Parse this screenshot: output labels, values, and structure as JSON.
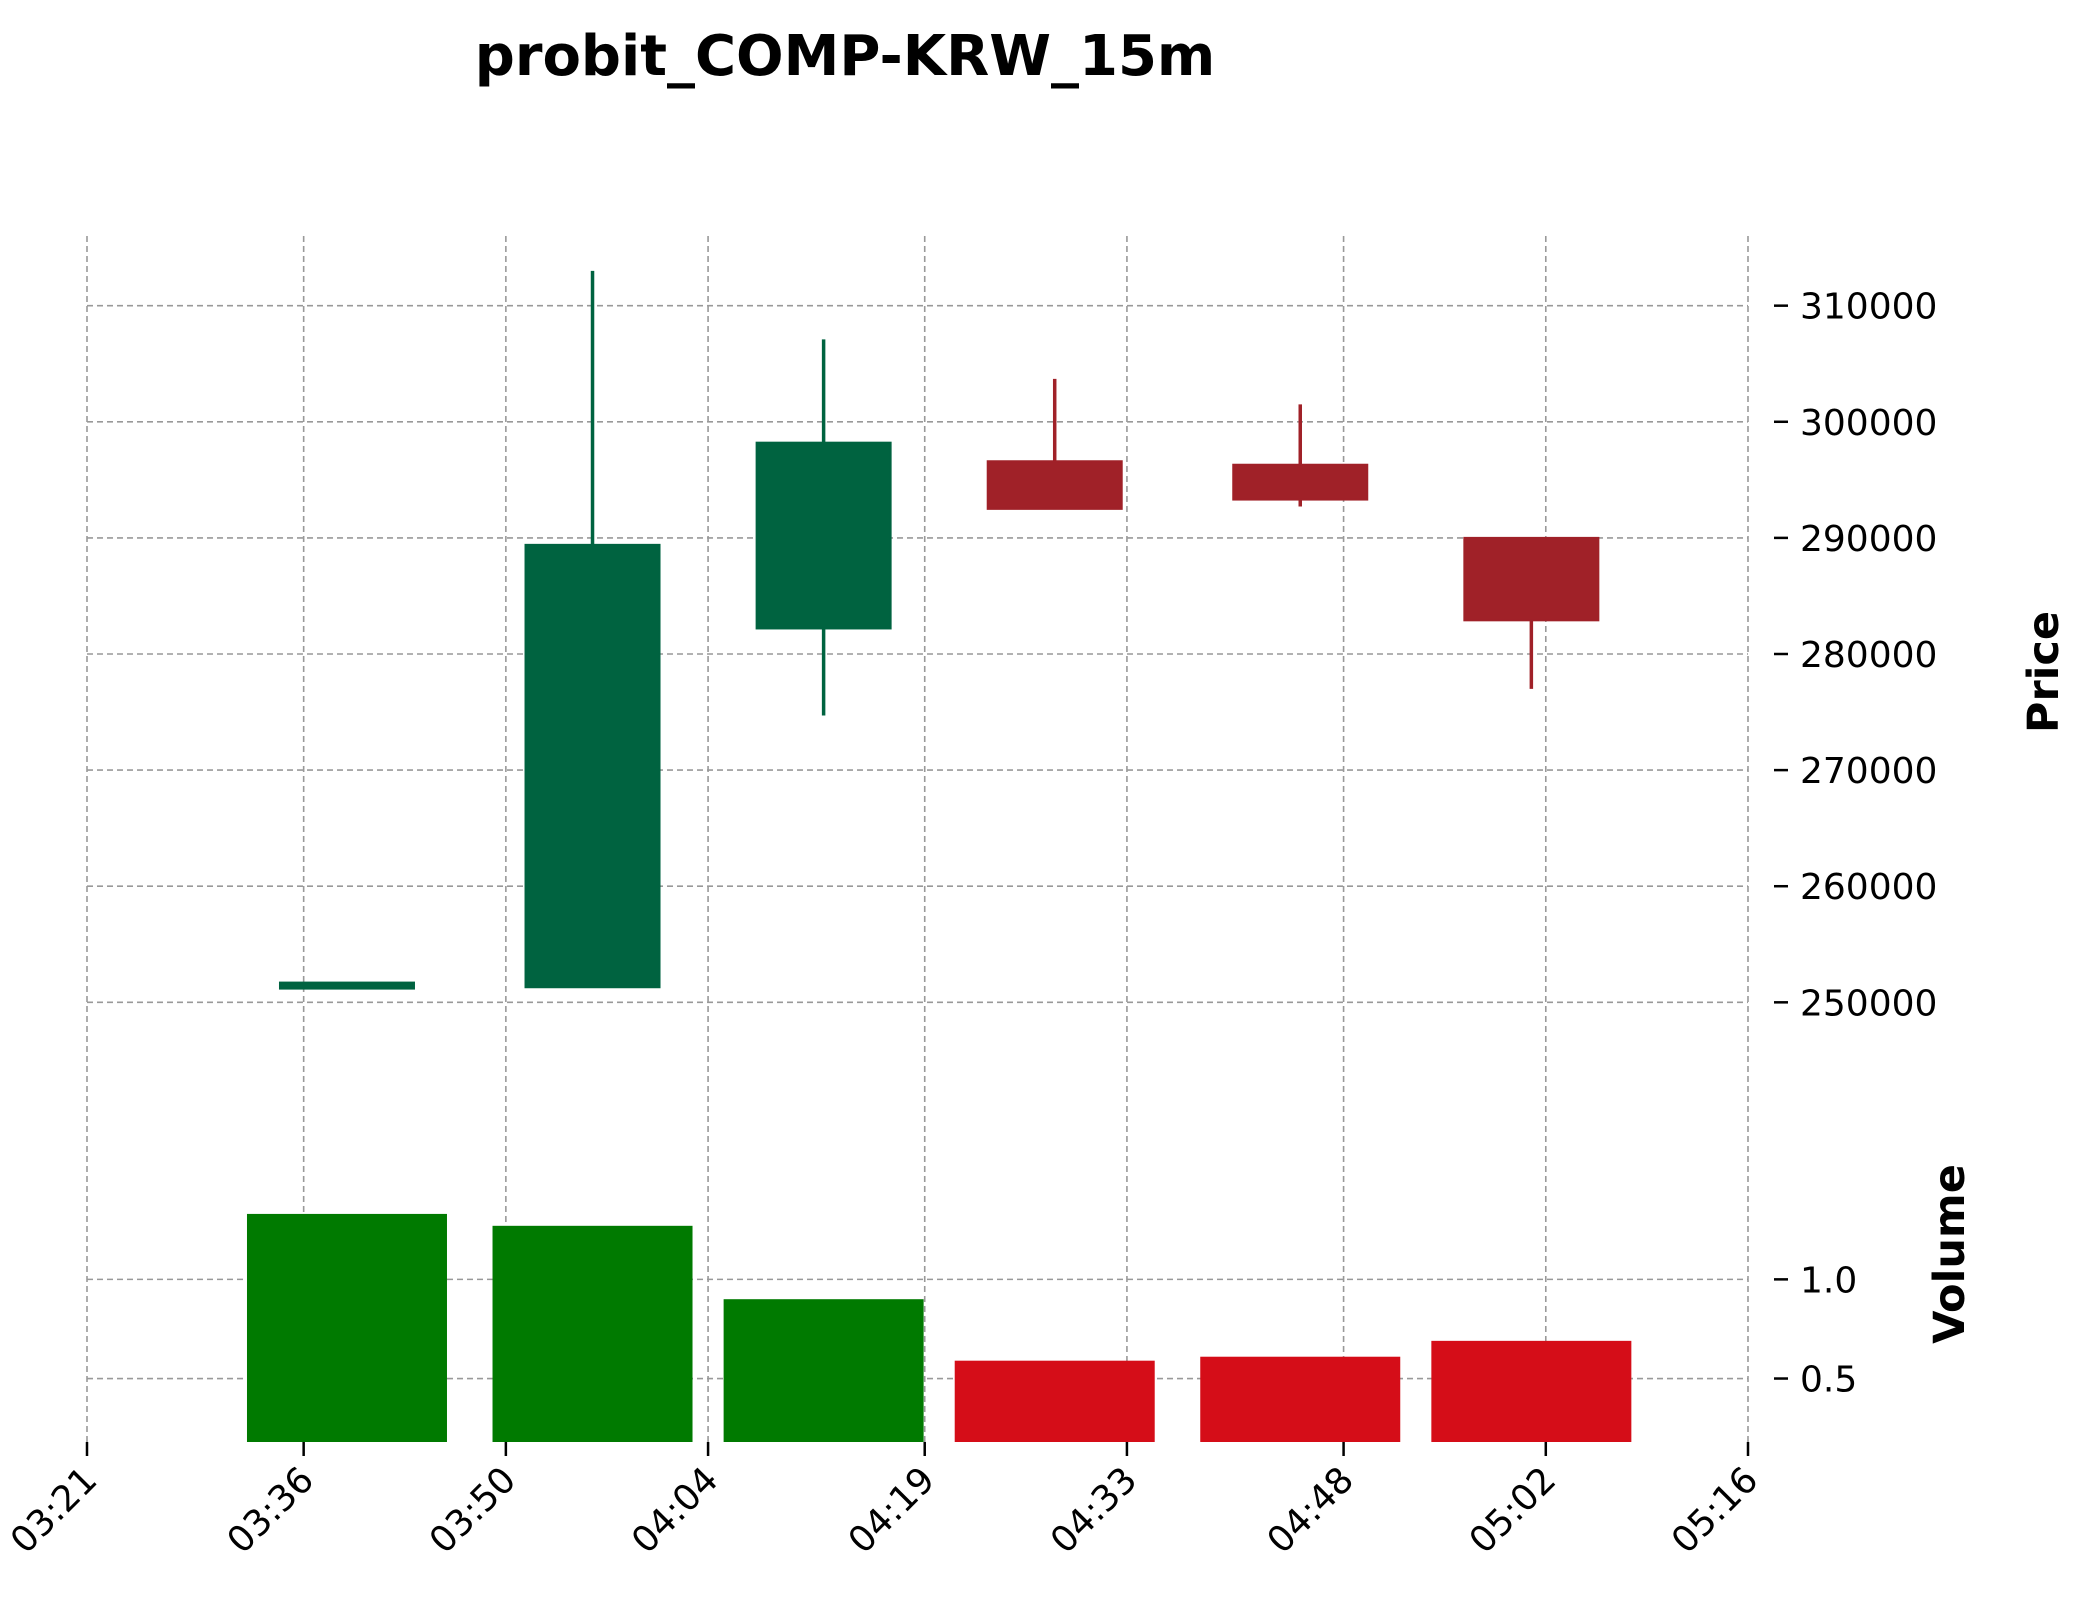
{
  "chart_data": {
    "type": "candlestick",
    "title": "probit_COMP-KRW_15m",
    "x_tick_labels": [
      "03:21",
      "03:36",
      "03:50",
      "04:04",
      "04:19",
      "04:33",
      "04:48",
      "05:02",
      "05:16"
    ],
    "grid": true,
    "price_panel": {
      "ylabel": "Price",
      "ylim": [
        244000,
        316000
      ],
      "y_ticks": [
        250000,
        260000,
        270000,
        280000,
        290000,
        300000,
        310000
      ],
      "y_tick_labels": [
        "250000",
        "260000",
        "270000",
        "280000",
        "290000",
        "300000",
        "310000"
      ]
    },
    "volume_panel": {
      "ylabel": "Volume",
      "ylim": [
        0.18,
        1.98
      ],
      "y_ticks": [
        0.5,
        1.0
      ],
      "y_tick_labels": [
        "0.5",
        "1.0"
      ]
    },
    "candles": [
      {
        "time": "03:39",
        "open": 251300,
        "high": 251700,
        "low": 251300,
        "close": 251700,
        "volume": 1.33
      },
      {
        "time": "03:56",
        "open": 251300,
        "high": 313000,
        "low": 251300,
        "close": 289400,
        "volume": 1.27
      },
      {
        "time": "04:12",
        "open": 282200,
        "high": 307100,
        "low": 274700,
        "close": 298200,
        "volume": 0.9
      },
      {
        "time": "04:28",
        "open": 296600,
        "high": 303700,
        "low": 292500,
        "close": 292500,
        "volume": 0.59
      },
      {
        "time": "04:45",
        "open": 296300,
        "high": 301500,
        "low": 292700,
        "close": 293300,
        "volume": 0.61
      },
      {
        "time": "05:01",
        "open": 290000,
        "high": 290000,
        "low": 277000,
        "close": 282900,
        "volume": 0.69
      }
    ],
    "colors": {
      "up_candle": "#006340",
      "down_candle": "#a02128",
      "up_volume": "#007a00",
      "down_volume": "#d50d18"
    }
  }
}
